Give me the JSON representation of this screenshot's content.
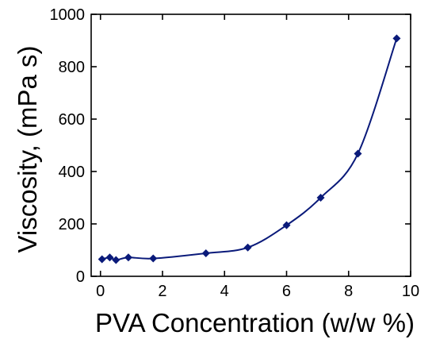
{
  "chart_data": {
    "type": "line",
    "title": "",
    "xlabel": "PVA Concentration (w/w %)",
    "ylabel": "Viscosity, (mPa s)",
    "xlim": [
      -0.3,
      10
    ],
    "ylim": [
      0,
      1000
    ],
    "xticks": [
      0,
      2,
      4,
      6,
      8,
      10
    ],
    "yticks": [
      0,
      200,
      400,
      600,
      800,
      1000
    ],
    "grid": false,
    "legend": "none",
    "marker": "diamond",
    "smooth": true,
    "color": "#0a1a7a",
    "series": [
      {
        "x": [
          0.05,
          0.3,
          0.5,
          0.9,
          1.7,
          3.4,
          4.75,
          6.0,
          7.1,
          8.3,
          9.55
        ],
        "y": [
          65,
          72,
          62,
          72,
          68,
          88,
          110,
          195,
          300,
          468,
          908
        ]
      }
    ]
  }
}
